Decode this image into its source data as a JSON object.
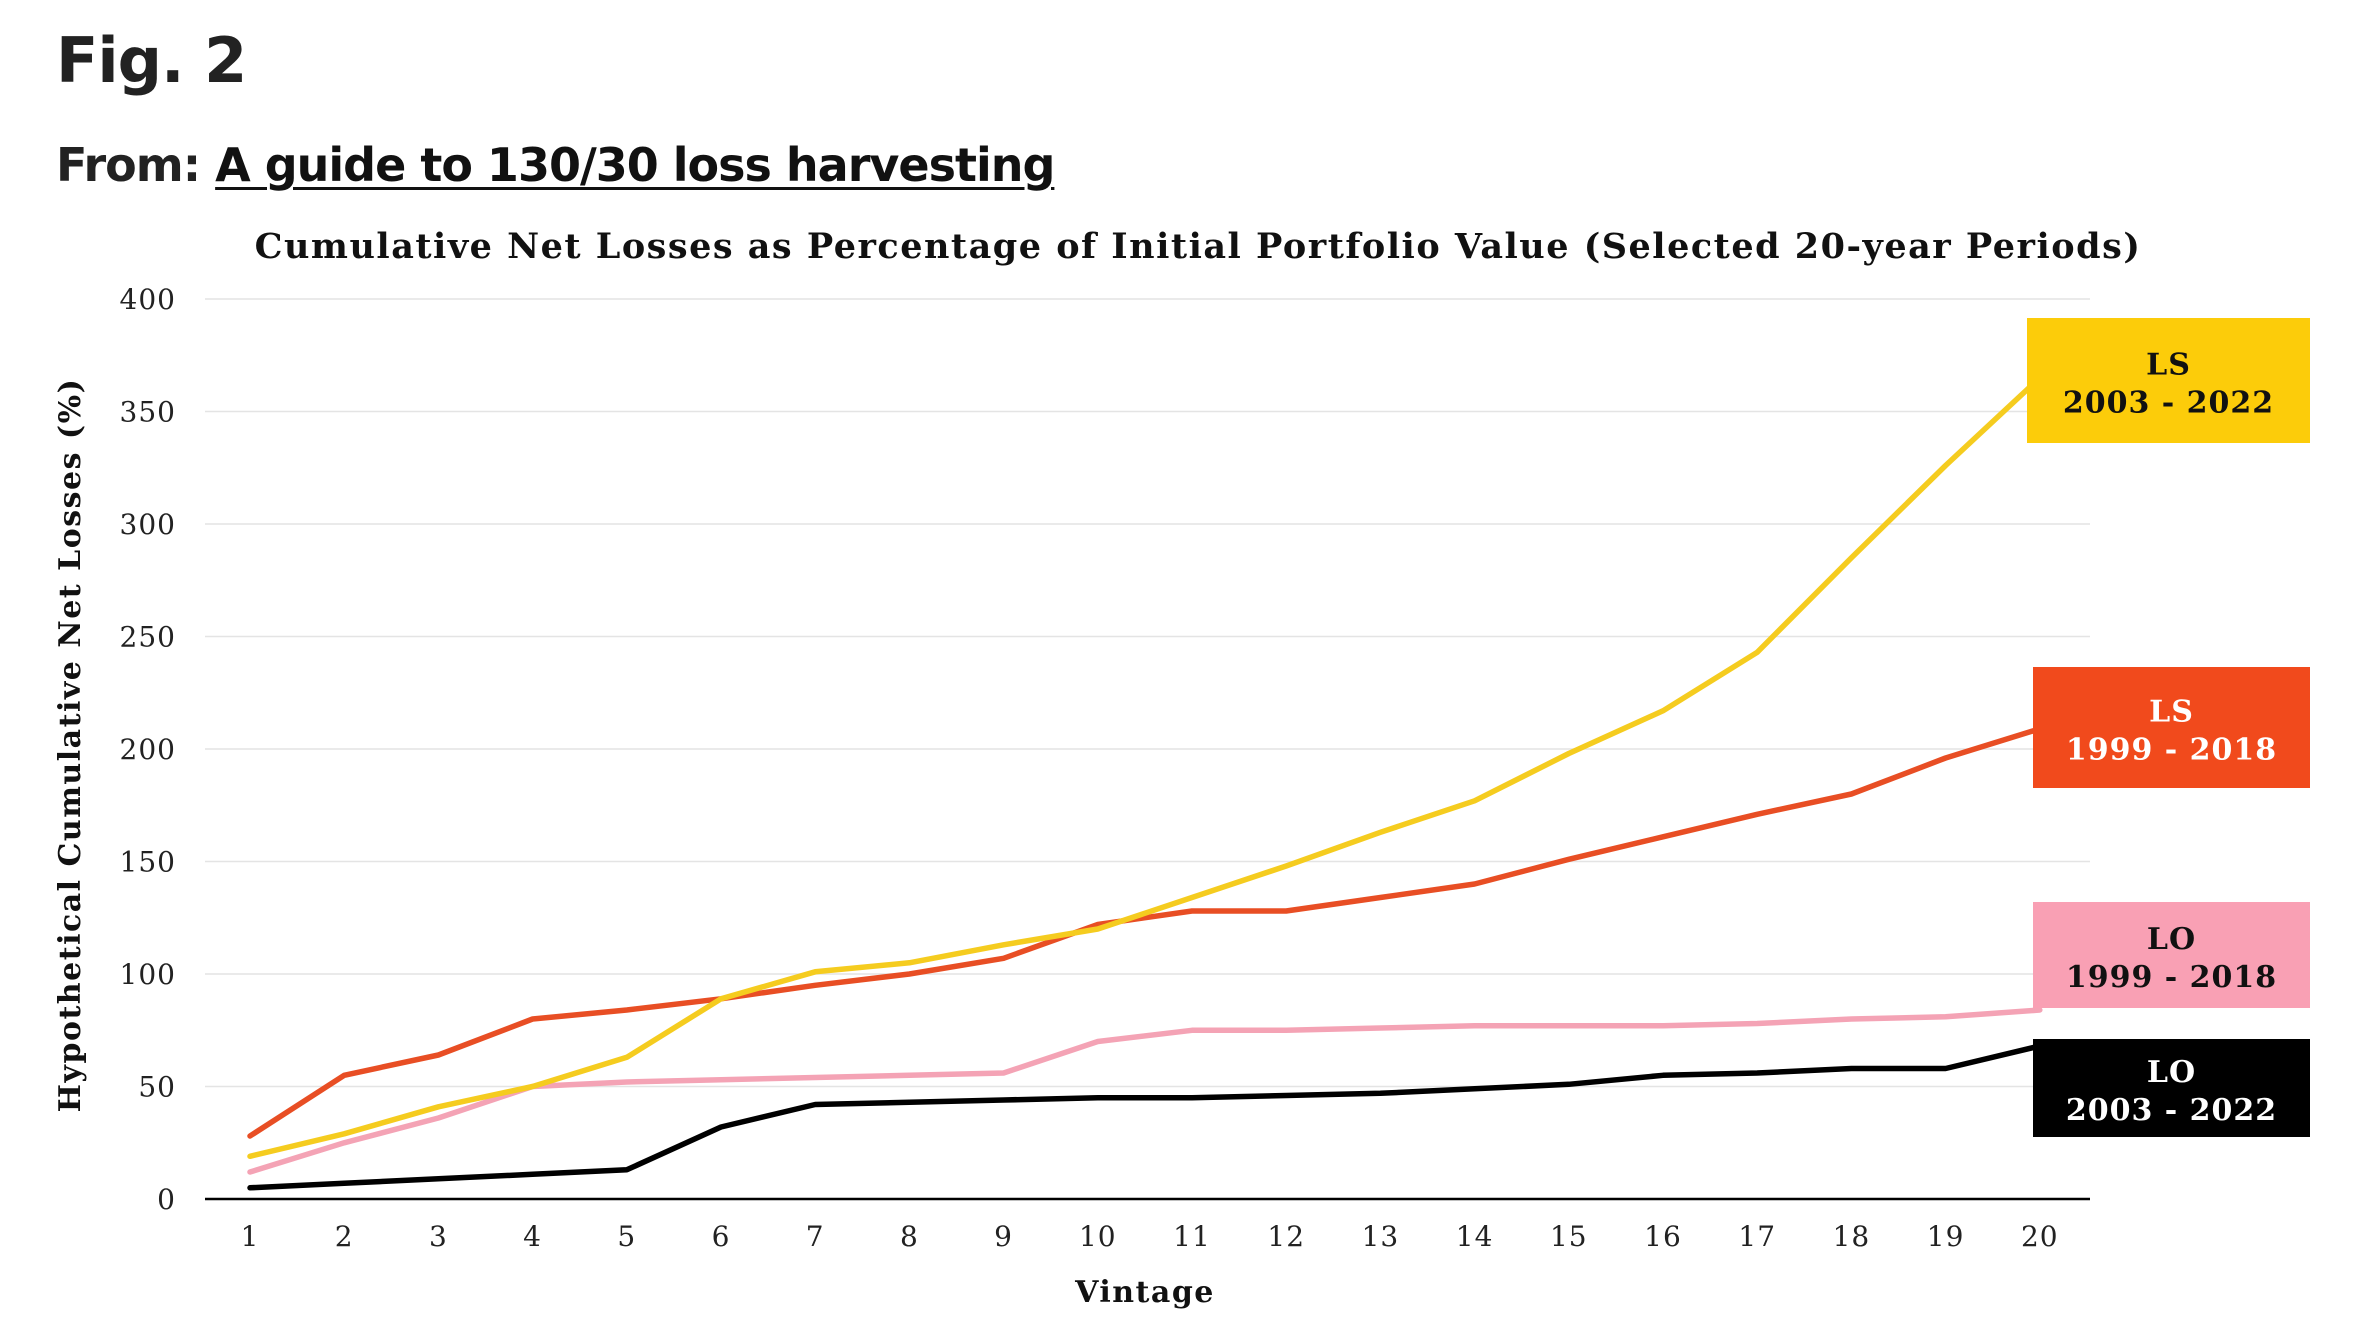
{
  "figure": {
    "label": "Fig. 2",
    "from_prefix": "From:",
    "from_link": "A guide to 130/30 loss harvesting"
  },
  "chart_data": {
    "type": "line",
    "title": "Cumulative Net Losses as Percentage of Initial Portfolio Value (Selected 20-year Periods)",
    "xlabel": "Vintage",
    "ylabel": "Hypothetical Cumulative Net Losses (%)",
    "categories": [
      1,
      2,
      3,
      4,
      5,
      6,
      7,
      8,
      9,
      10,
      11,
      12,
      13,
      14,
      15,
      16,
      17,
      18,
      19,
      20
    ],
    "ylim": [
      0,
      400
    ],
    "yticks": [
      0,
      50,
      100,
      150,
      200,
      250,
      300,
      350,
      400
    ],
    "grid": "horizontal",
    "legend": "right-end labels",
    "series": [
      {
        "key": "ls_2003",
        "label_line1": "LS",
        "label_line2": "2003 - 2022",
        "color": "#f5cc1f",
        "label_bg": "#fccc0a",
        "label_fg": "#111111",
        "values": [
          19,
          29,
          41,
          50,
          63,
          89,
          101,
          105,
          113,
          120,
          134,
          148,
          163,
          177,
          198,
          217,
          243,
          285,
          326,
          365
        ]
      },
      {
        "key": "ls_1999",
        "label_line1": "LS",
        "label_line2": "1999 - 2018",
        "color": "#e84e24",
        "label_bg": "#f14a1c",
        "label_fg": "#ffffff",
        "values": [
          28,
          55,
          64,
          80,
          84,
          89,
          95,
          100,
          107,
          122,
          128,
          128,
          134,
          140,
          151,
          161,
          171,
          180,
          196,
          209
        ]
      },
      {
        "key": "lo_1999",
        "label_line1": "LO",
        "label_line2": "1999 - 2018",
        "color": "#f4a3b5",
        "label_bg": "#f9a0b4",
        "label_fg": "#111111",
        "values": [
          12,
          25,
          36,
          50,
          52,
          53,
          54,
          55,
          56,
          70,
          75,
          75,
          76,
          77,
          77,
          77,
          78,
          80,
          81,
          84
        ]
      },
      {
        "key": "lo_2003",
        "label_line1": "LO",
        "label_line2": "2003 - 2022",
        "color": "#000000",
        "label_bg": "#000000",
        "label_fg": "#ffffff",
        "values": [
          5,
          7,
          9,
          11,
          13,
          32,
          42,
          43,
          44,
          45,
          45,
          46,
          47,
          49,
          51,
          55,
          56,
          58,
          58,
          68
        ]
      }
    ]
  }
}
